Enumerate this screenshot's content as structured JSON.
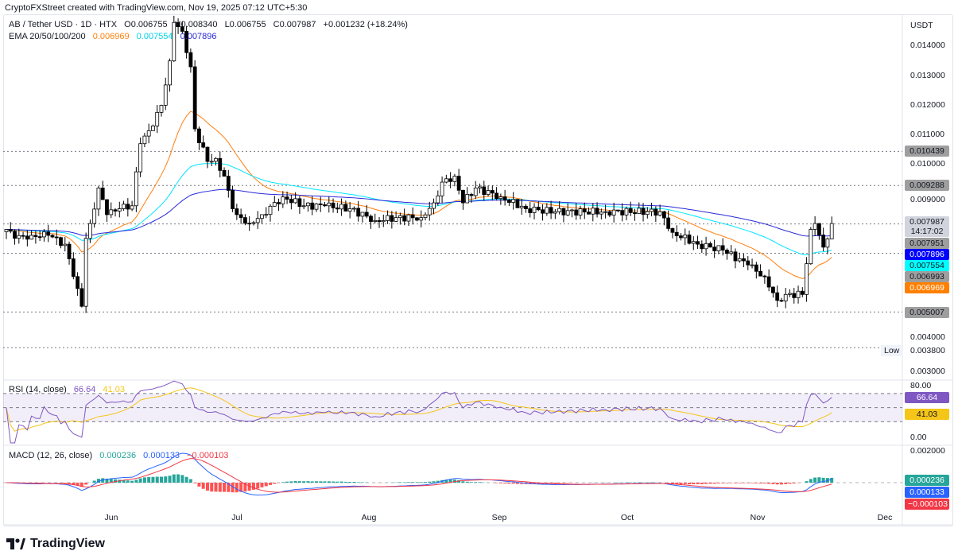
{
  "credit": "CryptoFXStreet created with TradingView.com, Nov 19, 2025 07:12 UTC+5:30",
  "header": {
    "symbol": "AB / Tether USD · 1D · HTX",
    "open": "O0.006755",
    "high": "H0.008340",
    "low": "L0.006755",
    "close": "C0.007987",
    "change": "+0.001232 (+18.24%)",
    "ema_label": "EMA 20/50/100/200",
    "ema20": "0.006969",
    "ema50": "0.007554",
    "ema100": "0.007896"
  },
  "currency": "USDT",
  "colors": {
    "ema20": "#ff7f0e",
    "ema50": "#00e5ff",
    "ema100": "#2929d9",
    "rsi": "#7e57c2",
    "rsi_ma": "#f5c518",
    "macd": "#2962ff",
    "signal": "#f23645",
    "hist_up": "#26a69a",
    "hist_down": "#ff5252"
  },
  "price_axis": [
    "0.014000",
    "0.013000",
    "0.012000",
    "0.011000",
    "0.010000",
    "0.009000",
    "0.004000",
    "0.003000"
  ],
  "price_badges": [
    {
      "text": "0.007987",
      "sub": "14:17:02",
      "bg": "#d1d4dc",
      "fg": "#131722",
      "value": 0.007987
    },
    {
      "text": "0.007951",
      "bg": "#9e9e9e",
      "fg": "#131722",
      "value": 0.007951
    },
    {
      "text": "0.007896",
      "bg": "#0000ff",
      "fg": "#ffffff",
      "value": 0.007896
    },
    {
      "text": "0.007554",
      "bg": "#00ffff",
      "fg": "#131722",
      "value": 0.007554
    },
    {
      "text": "0.006993",
      "bg": "#9e9e9e",
      "fg": "#131722",
      "value": 0.006993
    },
    {
      "text": "0.006969",
      "bg": "#ff7f00",
      "fg": "#ffffff",
      "value": 0.006969
    },
    {
      "text": "0.010439",
      "bg": "#9e9e9e",
      "fg": "#131722",
      "value": 0.010439
    },
    {
      "text": "0.009288",
      "bg": "#9e9e9e",
      "fg": "#131722",
      "value": 0.009288
    },
    {
      "text": "0.005007",
      "bg": "#9e9e9e",
      "fg": "#131722",
      "value": 0.005007
    }
  ],
  "hlines": [
    0.010439,
    0.009288,
    0.007987,
    0.006993,
    0.005007,
    0.0038
  ],
  "low_label": {
    "tag": "Low",
    "value": "0.003800"
  },
  "rsi": {
    "label": "RSI (14, close)",
    "value": "66.64",
    "ma": "41.03",
    "axis_top": "80.00",
    "axis_bottom": "0.00"
  },
  "macd": {
    "label": "MACD (12, 26, close)",
    "hist": "0.000236",
    "macd": "0.000133",
    "signal": "−0.000103",
    "axis_top": "0.002000"
  },
  "x_axis": [
    "Jun",
    "Jul",
    "Aug",
    "Sep",
    "Oct",
    "Nov",
    "Dec"
  ],
  "brand": "TradingView",
  "chart_data": {
    "type": "candlestick",
    "title": "AB / Tether USD · 1D · HTX",
    "ylim": [
      0.003,
      0.0145
    ],
    "close_anchors": [
      [
        0,
        0.0078
      ],
      [
        2,
        0.0075
      ],
      [
        6,
        0.0076
      ],
      [
        10,
        0.0076
      ],
      [
        14,
        0.0073
      ],
      [
        17,
        0.0058
      ],
      [
        18,
        0.0052
      ],
      [
        19,
        0.0075
      ],
      [
        20,
        0.008
      ],
      [
        22,
        0.0092
      ],
      [
        24,
        0.0083
      ],
      [
        27,
        0.0085
      ],
      [
        30,
        0.0086
      ],
      [
        32,
        0.0107
      ],
      [
        35,
        0.0113
      ],
      [
        37,
        0.012
      ],
      [
        39,
        0.0135
      ],
      [
        40,
        0.0148
      ],
      [
        42,
        0.0145
      ],
      [
        44,
        0.0133
      ],
      [
        45,
        0.0112
      ],
      [
        48,
        0.0101
      ],
      [
        50,
        0.0102
      ],
      [
        52,
        0.0096
      ],
      [
        54,
        0.0085
      ],
      [
        55,
        0.0083
      ],
      [
        58,
        0.008
      ],
      [
        61,
        0.0083
      ],
      [
        66,
        0.0089
      ],
      [
        71,
        0.0086
      ],
      [
        76,
        0.0086
      ],
      [
        82,
        0.0085
      ],
      [
        88,
        0.0081
      ],
      [
        93,
        0.0082
      ],
      [
        99,
        0.0082
      ],
      [
        102,
        0.0087
      ],
      [
        104,
        0.0094
      ],
      [
        107,
        0.0096
      ],
      [
        109,
        0.0087
      ],
      [
        112,
        0.0092
      ],
      [
        118,
        0.0089
      ],
      [
        124,
        0.0085
      ],
      [
        131,
        0.0084
      ],
      [
        143,
        0.0084
      ],
      [
        156,
        0.0084
      ],
      [
        159,
        0.0077
      ],
      [
        165,
        0.0073
      ],
      [
        171,
        0.0071
      ],
      [
        177,
        0.0066
      ],
      [
        181,
        0.0062
      ],
      [
        184,
        0.0054
      ],
      [
        186,
        0.0056
      ],
      [
        190,
        0.0056
      ],
      [
        192,
        0.0078
      ],
      [
        193,
        0.008
      ],
      [
        195,
        0.0072
      ],
      [
        197,
        0.008
      ]
    ]
  }
}
